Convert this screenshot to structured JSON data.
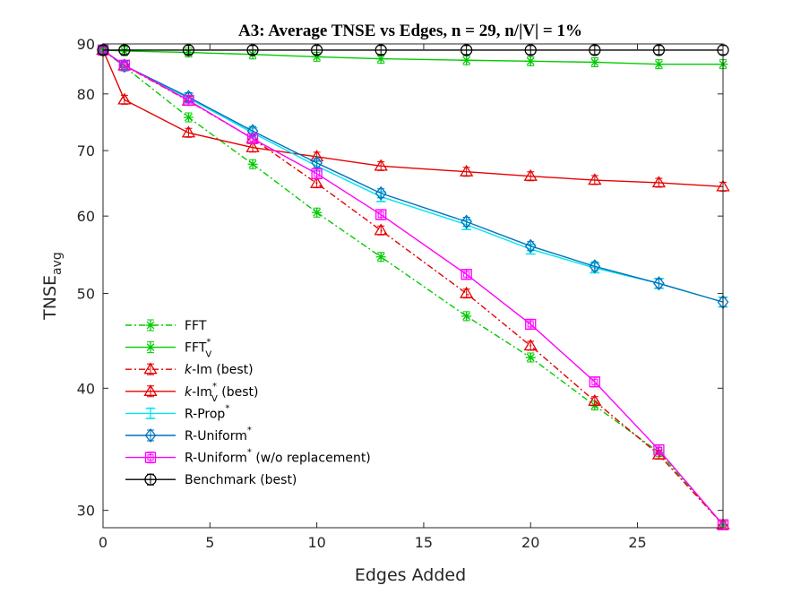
{
  "chart_data": {
    "type": "line",
    "title": "A3: Average TNSE vs Edges, n = 29, n/|V| = 1%",
    "xlabel": "Edges Added",
    "ylabel": "TNSE",
    "ylabel_sub": "avg",
    "xlim": [
      0,
      29
    ],
    "ylim": [
      28.8,
      90
    ],
    "yscale": "log",
    "xticks": [
      0,
      5,
      10,
      15,
      20,
      25
    ],
    "yticks": [
      30,
      40,
      50,
      60,
      70,
      80,
      90
    ],
    "grid": false,
    "legend_position": "lower-left",
    "x": [
      0,
      1,
      4,
      7,
      10,
      13,
      17,
      20,
      23,
      26,
      29
    ],
    "series": [
      {
        "name": "FFT",
        "color": "#00cc00",
        "dash": "dashdot",
        "marker": "star",
        "values": [
          88.7,
          85.3,
          75.7,
          67.8,
          60.5,
          54.5,
          47.4,
          43.0,
          38.4,
          34.4,
          29.0
        ]
      },
      {
        "name": "FFT",
        "sup": "*",
        "sub": "V",
        "color": "#00cc00",
        "dash": "solid",
        "marker": "star",
        "values": [
          88.7,
          88.5,
          88.2,
          87.8,
          87.3,
          86.9,
          86.6,
          86.4,
          86.2,
          85.8,
          85.8
        ]
      },
      {
        "name": "k-Im (best)",
        "italic_prefix": "k",
        "rest": "-Im (best)",
        "color": "#e60000",
        "dash": "dashdot",
        "marker": "triangle",
        "values": [
          88.7,
          85.5,
          78.7,
          72.0,
          64.8,
          58.0,
          50.0,
          44.2,
          38.8,
          34.2,
          29.0
        ]
      },
      {
        "name": "k-Im (best)",
        "italic_prefix": "k",
        "rest": "-Im",
        "sub": "V",
        "sup": "*",
        "after": " (best)",
        "color": "#e60000",
        "dash": "solid",
        "marker": "triangle",
        "values": [
          88.7,
          78.9,
          73.0,
          70.5,
          69.0,
          67.5,
          66.6,
          65.9,
          65.3,
          64.9,
          64.3
        ]
      },
      {
        "name": "R-Prop",
        "sup": "*",
        "color": "#00e5ee",
        "dash": "solid",
        "marker": "errorbar",
        "values": [
          88.7,
          85.5,
          79.2,
          73.0,
          67.5,
          62.8,
          58.8,
          55.5,
          53.1,
          51.2,
          49.0
        ]
      },
      {
        "name": "R-Uniform",
        "sup": "*",
        "color": "#0072bd",
        "dash": "solid",
        "marker": "diamond",
        "values": [
          88.7,
          85.5,
          79.4,
          73.3,
          68.0,
          63.3,
          59.2,
          55.9,
          53.3,
          51.2,
          49.0
        ]
      },
      {
        "name": "R-Uniform",
        "sup": "*",
        "after": " (w/o replacement)",
        "color": "#ff00ff",
        "dash": "solid",
        "marker": "square",
        "values": [
          88.7,
          85.6,
          78.8,
          72.0,
          66.3,
          60.2,
          52.3,
          46.5,
          40.6,
          34.6,
          29.0
        ]
      },
      {
        "name": "Benchmark (best)",
        "color": "#000000",
        "dash": "solid",
        "marker": "circle",
        "values": [
          88.7,
          88.7,
          88.7,
          88.7,
          88.7,
          88.7,
          88.7,
          88.7,
          88.7,
          88.7,
          88.7
        ]
      }
    ]
  }
}
